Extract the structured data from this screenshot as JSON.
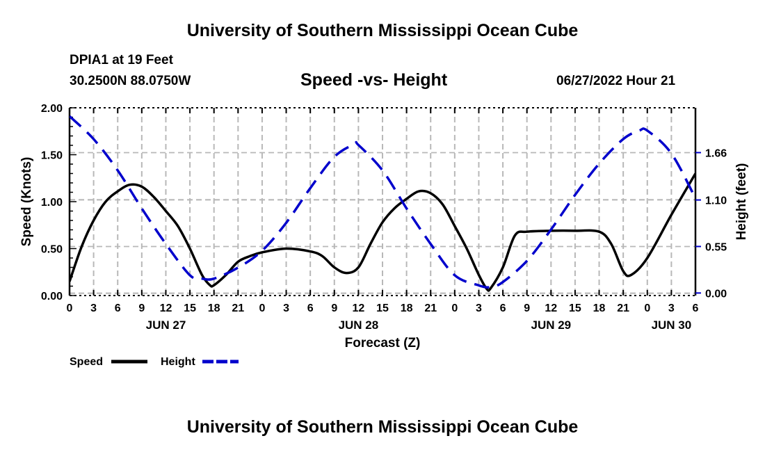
{
  "header": {
    "title": "University of Southern Mississippi Ocean Cube",
    "station": "DPIA1 at 19 Feet",
    "coords": "30.2500N  88.0750W",
    "subtitle": "Speed -vs- Height",
    "datetime": "06/27/2022 Hour 21"
  },
  "footer": {
    "title": "University of Southern Mississippi Ocean Cube"
  },
  "chart_data": {
    "type": "line",
    "title": "Speed -vs- Height",
    "xlabel": "Forecast (Z)",
    "ylabel": "Speed (Knots)",
    "y2label": "Height (feet)",
    "xlim": [
      0,
      78
    ],
    "ylim": [
      0,
      2
    ],
    "y2lim": [
      -0.03,
      2.19
    ],
    "x_ticks": [
      0,
      3,
      6,
      9,
      12,
      15,
      18,
      21,
      24,
      27,
      30,
      33,
      36,
      39,
      42,
      45,
      48,
      51,
      54,
      57,
      60,
      63,
      66,
      69,
      72,
      75,
      78
    ],
    "x_tick_labels": [
      "0",
      "3",
      "6",
      "9",
      "12",
      "15",
      "18",
      "21",
      "0",
      "3",
      "6",
      "9",
      "12",
      "15",
      "18",
      "21",
      "0",
      "3",
      "6",
      "9",
      "12",
      "15",
      "18",
      "21",
      "0",
      "3",
      "6"
    ],
    "day_labels": [
      {
        "hour": 12,
        "label": "JUN 27"
      },
      {
        "hour": 36,
        "label": "JUN 28"
      },
      {
        "hour": 60,
        "label": "JUN 29"
      },
      {
        "hour": 75,
        "label": "JUN 30"
      }
    ],
    "y_ticks": [
      0,
      0.5,
      1,
      1.5,
      2
    ],
    "y_tick_labels": [
      "0.00",
      "0.50",
      "1.00",
      "1.50",
      "2.00"
    ],
    "y2_ticks": [
      0,
      0.55,
      1.1,
      1.66
    ],
    "y2_tick_labels": [
      "0.00",
      "0.55",
      "1.10",
      "1.66"
    ],
    "grid": true,
    "legend_position": "bottom-left",
    "series": [
      {
        "name": "Speed",
        "color": "#000000",
        "axis": "left",
        "dash": "solid",
        "x": [
          0,
          1.5,
          3,
          4.5,
          6,
          7.5,
          9,
          10.5,
          12,
          13.5,
          15,
          16.5,
          17.5,
          18,
          19.5,
          21,
          22.5,
          24,
          27,
          30,
          31.5,
          33,
          34.5,
          36,
          37.5,
          39,
          40.5,
          42,
          43.5,
          45,
          46.5,
          48,
          49.5,
          51,
          52,
          52.5,
          54,
          55.5,
          57,
          60,
          63,
          66,
          67.5,
          69,
          70,
          72,
          75,
          78
        ],
        "y": [
          0.15,
          0.52,
          0.8,
          1.0,
          1.11,
          1.18,
          1.16,
          1.05,
          0.9,
          0.74,
          0.5,
          0.22,
          0.11,
          0.11,
          0.22,
          0.36,
          0.42,
          0.46,
          0.5,
          0.47,
          0.42,
          0.3,
          0.24,
          0.3,
          0.55,
          0.78,
          0.93,
          1.03,
          1.11,
          1.09,
          0.97,
          0.74,
          0.5,
          0.22,
          0.07,
          0.08,
          0.3,
          0.64,
          0.68,
          0.69,
          0.69,
          0.68,
          0.55,
          0.26,
          0.22,
          0.4,
          0.86,
          1.3
        ]
      },
      {
        "name": "Height",
        "color": "#0000cc",
        "axis": "right",
        "dash": "dashed",
        "x": [
          0,
          3,
          6,
          9,
          12,
          15,
          16.5,
          18,
          21,
          24,
          27,
          30,
          33,
          35.5,
          36,
          39,
          42,
          45,
          48,
          51,
          52.5,
          54,
          57,
          60,
          63,
          66,
          69,
          71,
          72,
          75,
          78
        ],
        "y": [
          2.09,
          1.82,
          1.45,
          1.0,
          0.58,
          0.21,
          0.17,
          0.17,
          0.3,
          0.5,
          0.83,
          1.24,
          1.61,
          1.76,
          1.75,
          1.45,
          1.0,
          0.58,
          0.21,
          0.09,
          0.07,
          0.13,
          0.38,
          0.75,
          1.16,
          1.53,
          1.82,
          1.92,
          1.92,
          1.65,
          1.12
        ]
      }
    ]
  }
}
